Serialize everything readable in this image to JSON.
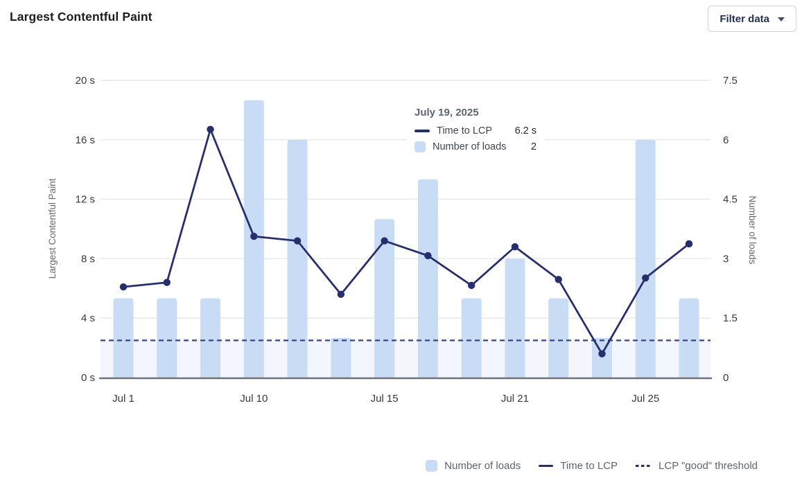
{
  "header": {
    "title": "Largest Contentful Paint",
    "filter_button": {
      "label": "Filter data"
    }
  },
  "tooltip": {
    "date": "July 19, 2025",
    "rows": [
      {
        "swatch": "line",
        "label": "Time to LCP",
        "value": "6.2 s"
      },
      {
        "swatch": "bar",
        "label": "Number of loads",
        "value": "2"
      }
    ]
  },
  "legend": {
    "items": [
      {
        "swatch": "bar",
        "label": "Number of loads"
      },
      {
        "swatch": "line",
        "label": "Time to LCP"
      },
      {
        "swatch": "dashed",
        "label": "LCP \"good\" threshold"
      }
    ]
  },
  "chart_data": {
    "type": "mixed",
    "title": "Largest Contentful Paint",
    "x_ticks": [
      {
        "index": 0,
        "label": "Jul 1"
      },
      {
        "index": 3,
        "label": "Jul 10"
      },
      {
        "index": 6,
        "label": "Jul 15"
      },
      {
        "index": 9,
        "label": "Jul 21"
      },
      {
        "index": 12,
        "label": "Jul 25"
      }
    ],
    "left_axis": {
      "label": "Largest Contentful Paint",
      "min": 0,
      "max": 20,
      "tick_values": [
        0,
        4,
        8,
        12,
        16,
        20
      ],
      "tick_labels": [
        "0 s",
        "4 s",
        "8 s",
        "12 s",
        "16 s",
        "20 s"
      ]
    },
    "right_axis": {
      "label": "Number of loads",
      "min": 0,
      "max": 7.5,
      "tick_values": [
        0,
        1.5,
        3,
        4.5,
        6,
        7.5
      ],
      "tick_labels": [
        "0",
        "1.5",
        "3",
        "4.5",
        "6",
        "7.5"
      ]
    },
    "series": [
      {
        "name": "Number of loads",
        "type": "bar",
        "axis": "right",
        "color": "#c9dcf5",
        "values": [
          2,
          2,
          2,
          7,
          6,
          1,
          4,
          5,
          2,
          3,
          2,
          1,
          6,
          2
        ]
      },
      {
        "name": "Time to LCP",
        "type": "line",
        "axis": "left",
        "color": "#272e6d",
        "values": [
          6.1,
          6.4,
          16.7,
          9.5,
          9.2,
          5.6,
          9.2,
          8.2,
          6.2,
          8.8,
          6.6,
          1.6,
          6.7,
          9.0
        ]
      }
    ],
    "threshold": {
      "name": "LCP \"good\" threshold",
      "axis": "left",
      "value": 2.5,
      "line_color": "#39418f",
      "band_color": "#f4f6fd"
    },
    "grid": {
      "on": true,
      "color": "#e7e7e7",
      "axis_line_color": "#6f7276"
    },
    "hovered_point_index": 8,
    "legend_position": "bottom-right"
  },
  "colors": {
    "accent_navy": "#272e6d",
    "accent_light_blue": "#c9dcf5"
  }
}
